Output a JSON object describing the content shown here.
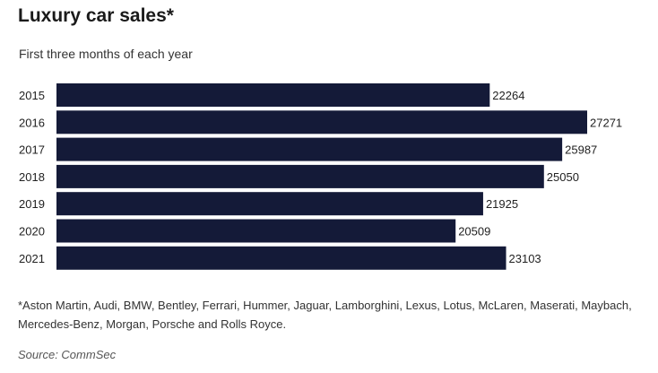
{
  "title": "Luxury car sales*",
  "subtitle": "First three months of each year",
  "footnote": "*Aston Martin, Audi, BMW, Bentley, Ferrari, Hummer, Jaguar, Lamborghini, Lexus, Lotus, McLaren, Maserati, Maybach, Mercedes-Benz, Morgan, Porsche and Rolls Royce.",
  "source": "Source: CommSec",
  "colors": {
    "bar": "#141a38",
    "label": "#222222"
  },
  "chart_data": {
    "type": "bar",
    "orientation": "horizontal",
    "categories": [
      "2015",
      "2016",
      "2017",
      "2018",
      "2019",
      "2020",
      "2021"
    ],
    "values": [
      22264,
      27271,
      25987,
      25050,
      21925,
      20509,
      23103
    ],
    "title": "Luxury car sales*",
    "subtitle": "First three months of each year",
    "xlabel": "",
    "ylabel": "",
    "xlim": [
      0,
      27271
    ],
    "grid": false,
    "legend": "none",
    "data_labels": true
  }
}
